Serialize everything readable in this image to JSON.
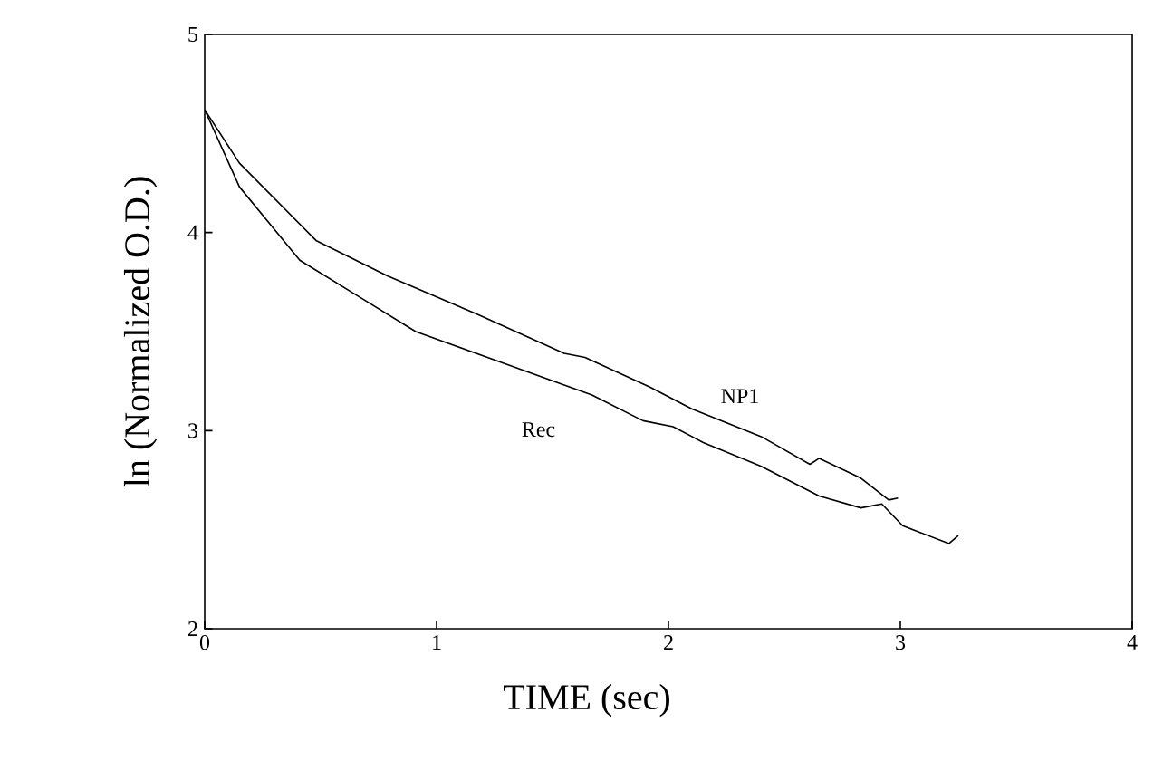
{
  "chart_data": {
    "type": "line",
    "xlabel": "TIME  (sec)",
    "ylabel": "ln (Normalized O.D.)",
    "xlim": [
      0,
      4
    ],
    "ylim": [
      2,
      5
    ],
    "xticks": [
      0,
      1,
      2,
      3,
      4
    ],
    "yticks": [
      2,
      3,
      4,
      5
    ],
    "grid": false,
    "marker": "none",
    "line_style": "solid",
    "series": [
      {
        "name": "NP1",
        "color": "#000000",
        "x": [
          0,
          0.15,
          0.48,
          0.79,
          1.17,
          1.55,
          1.64,
          1.92,
          2.1,
          2.4,
          2.61,
          2.65,
          2.83,
          2.95,
          2.99
        ],
        "values": [
          4.62,
          4.35,
          3.96,
          3.78,
          3.59,
          3.39,
          3.37,
          3.22,
          3.11,
          2.97,
          2.83,
          2.86,
          2.76,
          2.65,
          2.66
        ]
      },
      {
        "name": "Rec",
        "color": "#000000",
        "x": [
          0,
          0.15,
          0.41,
          0.66,
          0.91,
          1.29,
          1.67,
          1.89,
          2.02,
          2.15,
          2.4,
          2.65,
          2.83,
          2.92,
          3.01,
          3.21,
          3.25
        ],
        "values": [
          4.62,
          4.23,
          3.86,
          3.68,
          3.5,
          3.34,
          3.18,
          3.05,
          3.02,
          2.94,
          2.82,
          2.67,
          2.61,
          2.63,
          2.52,
          2.43,
          2.47
        ]
      }
    ]
  }
}
